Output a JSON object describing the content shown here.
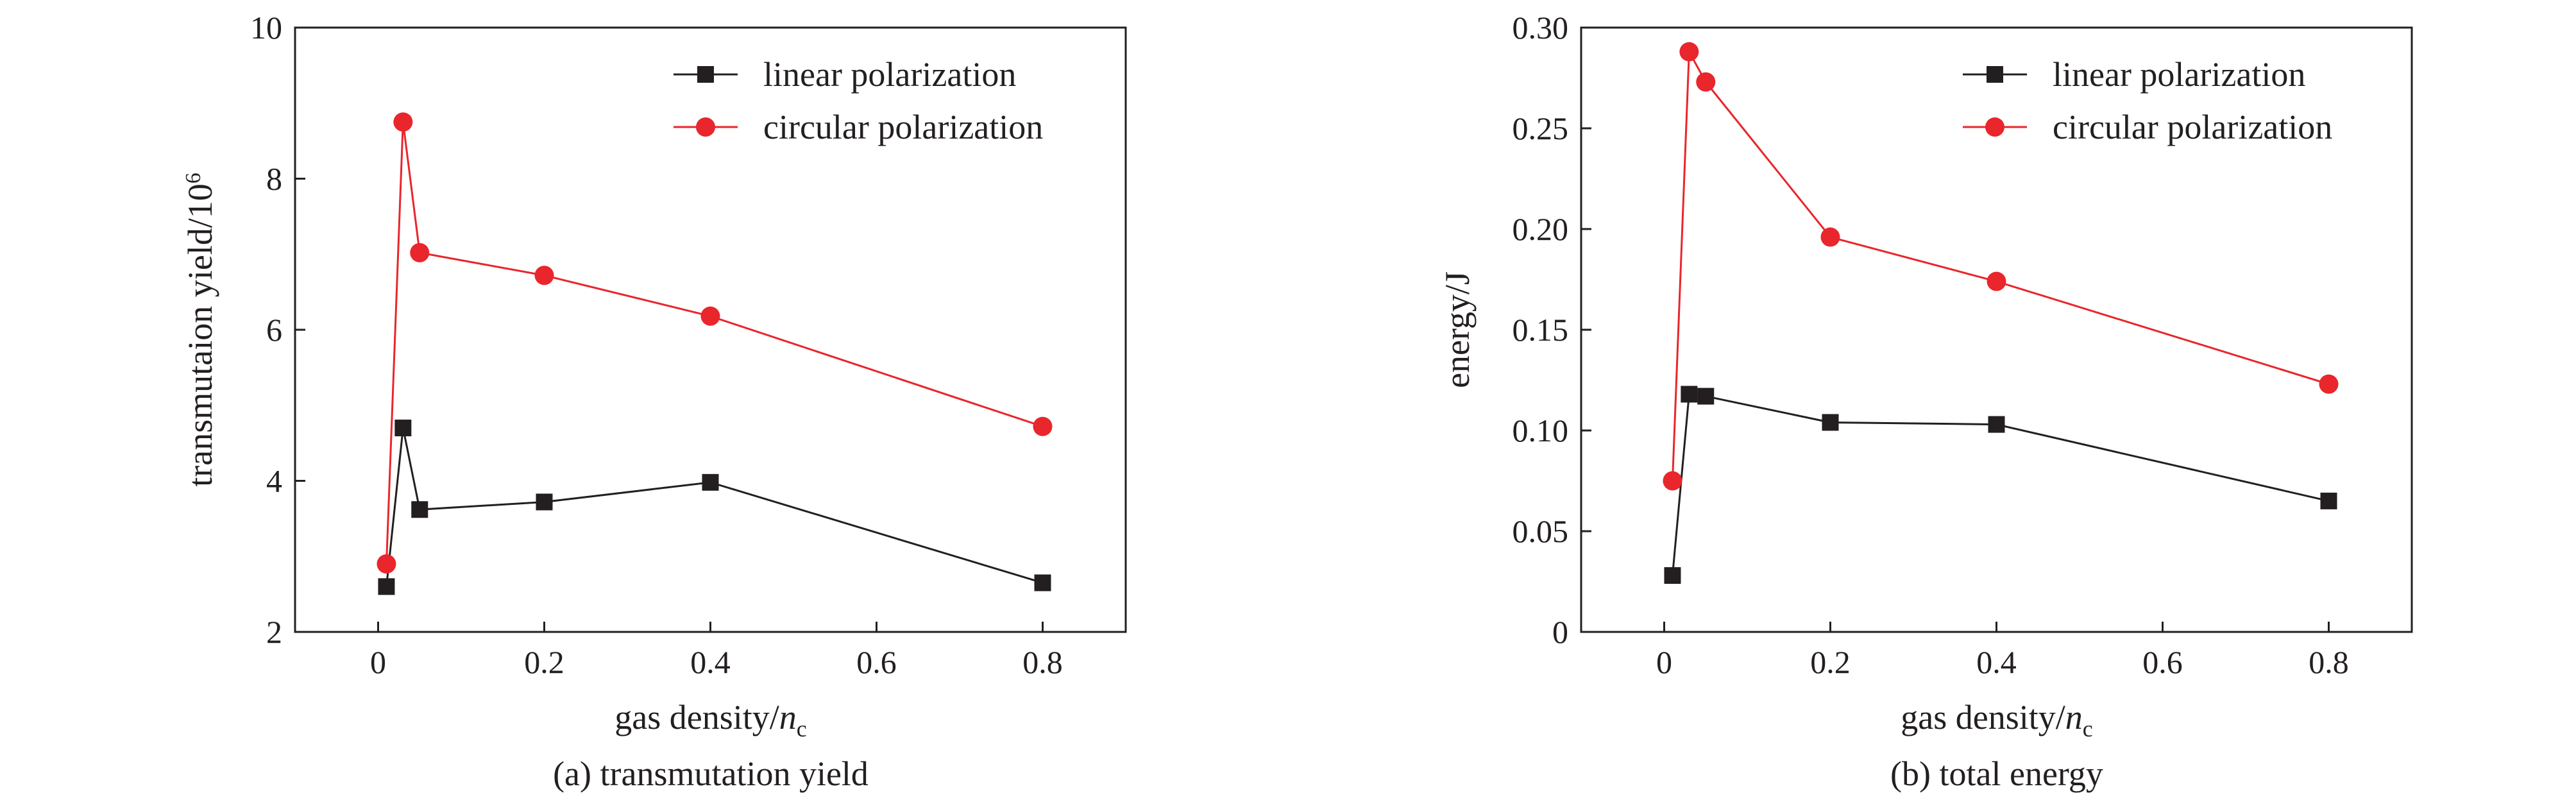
{
  "colors": {
    "linear": "#231f20",
    "circular": "#e8262c",
    "axis": "#231f20",
    "background": "#ffffff"
  },
  "chart_data": [
    {
      "type": "line",
      "caption": "(a) transmutation yield",
      "xlabel_main": "gas density/",
      "xlabel_var": "n",
      "xlabel_sub": "c",
      "ylabel_main": "transmutaion yield/10",
      "ylabel_sup": "6",
      "xlim": [
        -0.1,
        0.9
      ],
      "ylim": [
        2,
        10
      ],
      "x_ticks": [
        0,
        0.2,
        0.4,
        0.6,
        0.8
      ],
      "x_tick_labels": [
        "0",
        "0.2",
        "0.4",
        "0.6",
        "0.8"
      ],
      "y_ticks": [
        2,
        4,
        6,
        8,
        10
      ],
      "y_tick_labels": [
        "2",
        "4",
        "6",
        "8",
        "10"
      ],
      "legend_position": "top-right",
      "grid": false,
      "series": [
        {
          "name": "linear polarization",
          "marker": "square",
          "color_key": "linear",
          "x": [
            0.01,
            0.03,
            0.05,
            0.2,
            0.4,
            0.8
          ],
          "y": [
            2.6,
            4.7,
            3.62,
            3.72,
            3.98,
            2.65
          ]
        },
        {
          "name": "circular polarization",
          "marker": "circle",
          "color_key": "circular",
          "x": [
            0.01,
            0.03,
            0.05,
            0.2,
            0.4,
            0.8
          ],
          "y": [
            2.9,
            8.75,
            7.02,
            6.72,
            6.18,
            4.72
          ]
        }
      ]
    },
    {
      "type": "line",
      "caption": "(b) total energy",
      "xlabel_main": "gas density/",
      "xlabel_var": "n",
      "xlabel_sub": "c",
      "ylabel_main": "energy/J",
      "ylabel_sup": "",
      "xlim": [
        -0.1,
        0.9
      ],
      "ylim": [
        0,
        0.3
      ],
      "x_ticks": [
        0,
        0.2,
        0.4,
        0.6,
        0.8
      ],
      "x_tick_labels": [
        "0",
        "0.2",
        "0.4",
        "0.6",
        "0.8"
      ],
      "y_ticks": [
        0,
        0.05,
        0.1,
        0.15,
        0.2,
        0.25,
        0.3
      ],
      "y_tick_labels": [
        "0",
        "0.05",
        "0.10",
        "0.15",
        "0.20",
        "0.25",
        "0.30"
      ],
      "legend_position": "top-right",
      "grid": false,
      "series": [
        {
          "name": "linear polarization",
          "marker": "square",
          "color_key": "linear",
          "x": [
            0.01,
            0.03,
            0.05,
            0.2,
            0.4,
            0.8
          ],
          "y": [
            0.028,
            0.118,
            0.117,
            0.104,
            0.103,
            0.065
          ]
        },
        {
          "name": "circular polarization",
          "marker": "circle",
          "color_key": "circular",
          "x": [
            0.01,
            0.03,
            0.05,
            0.2,
            0.4,
            0.8
          ],
          "y": [
            0.075,
            0.288,
            0.273,
            0.196,
            0.174,
            0.123
          ]
        }
      ]
    }
  ]
}
